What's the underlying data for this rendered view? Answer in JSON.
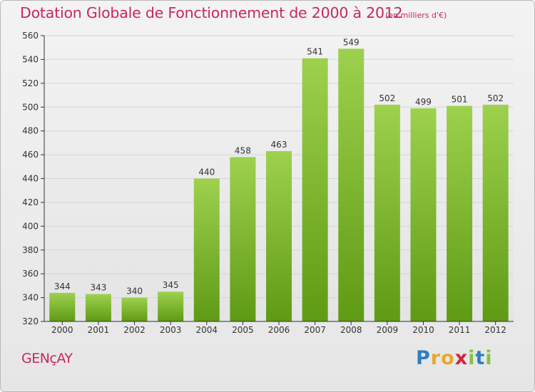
{
  "title": "Dotation Globale de Fonctionnement de 2000 à 2012",
  "subtitle": "(en milliers d'€)",
  "commune": "GENçAY",
  "logo": {
    "letters": [
      {
        "ch": "P",
        "color": "#2f7fc1"
      },
      {
        "ch": "r",
        "color": "#e9a82b"
      },
      {
        "ch": "o",
        "color": "#e9a82b"
      },
      {
        "ch": "x",
        "color": "#d6243b"
      },
      {
        "ch": "i",
        "color": "#84c441"
      },
      {
        "ch": "t",
        "color": "#2f7fc1"
      },
      {
        "ch": "i",
        "color": "#84c441"
      }
    ]
  },
  "chart_data": {
    "type": "bar",
    "categories": [
      "2000",
      "2001",
      "2002",
      "2003",
      "2004",
      "2005",
      "2006",
      "2007",
      "2008",
      "2009",
      "2010",
      "2011",
      "2012"
    ],
    "values": [
      344,
      343,
      340,
      345,
      440,
      458,
      463,
      541,
      549,
      502,
      499,
      501,
      502
    ],
    "ylim": [
      320,
      560
    ],
    "yticks": [
      320,
      340,
      360,
      380,
      400,
      420,
      440,
      460,
      480,
      500,
      520,
      540,
      560
    ],
    "grid": true,
    "colors": {
      "bar_top": "#9dd14e",
      "bar_bottom": "#5f9a15",
      "grid": "#d6d6d6",
      "axis": "#333333"
    }
  }
}
